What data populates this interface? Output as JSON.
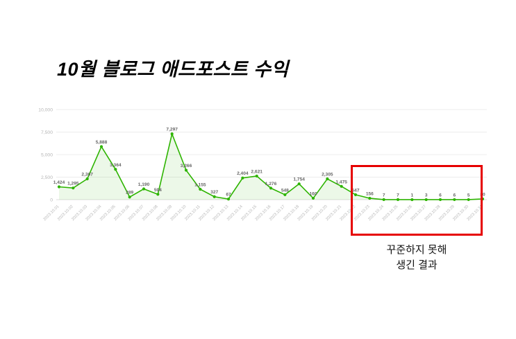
{
  "title": "10월 블로그 애드포스트 수익",
  "chart_data": {
    "type": "area",
    "title": "10월 블로그 애드포스트 수익",
    "categories": [
      "2023.10.01",
      "2023.10.02",
      "2023.10.03",
      "2023.10.04",
      "2023.10.05",
      "2023.10.06",
      "2023.10.07",
      "2023.10.08",
      "2023.10.09",
      "2023.10.10",
      "2023.10.11",
      "2023.10.12",
      "2023.10.13",
      "2023.10.14",
      "2023.10.15",
      "2023.10.16",
      "2023.10.17",
      "2023.10.18",
      "2023.10.19",
      "2023.10.20",
      "2023.10.21",
      "2023.10.22",
      "2023.10.23",
      "2023.10.24",
      "2023.10.25",
      "2023.10.26",
      "2023.10.27",
      "2023.10.28",
      "2023.10.29",
      "2023.10.30",
      "2023.10.31"
    ],
    "values": [
      1424,
      1295,
      2307,
      5888,
      3364,
      289,
      1190,
      594,
      7297,
      3266,
      1155,
      327,
      67,
      2404,
      2621,
      1276,
      548,
      1754,
      160,
      2305,
      1475,
      547,
      156,
      7,
      7,
      1,
      3,
      6,
      6,
      5,
      80
    ],
    "xlabel": "",
    "ylabel": "",
    "ylim": [
      0,
      10000
    ],
    "ytick_step": 2500,
    "ytick_labels": [
      "0",
      "2,500",
      "5,000",
      "7,500",
      "10,000"
    ],
    "grid": true,
    "legend": "none",
    "line_color": "#2db400",
    "point_color": "#2db400",
    "fill_color": "rgba(45, 180, 0, 0.09)",
    "value_label_color": "#666666",
    "axis_label_color": "#b5b5b5",
    "grid_color": "#ececec"
  },
  "annotation": {
    "box_color": "#e60000",
    "caption_line1": "꾸준하지 못해",
    "caption_line2": "생긴 결과"
  }
}
